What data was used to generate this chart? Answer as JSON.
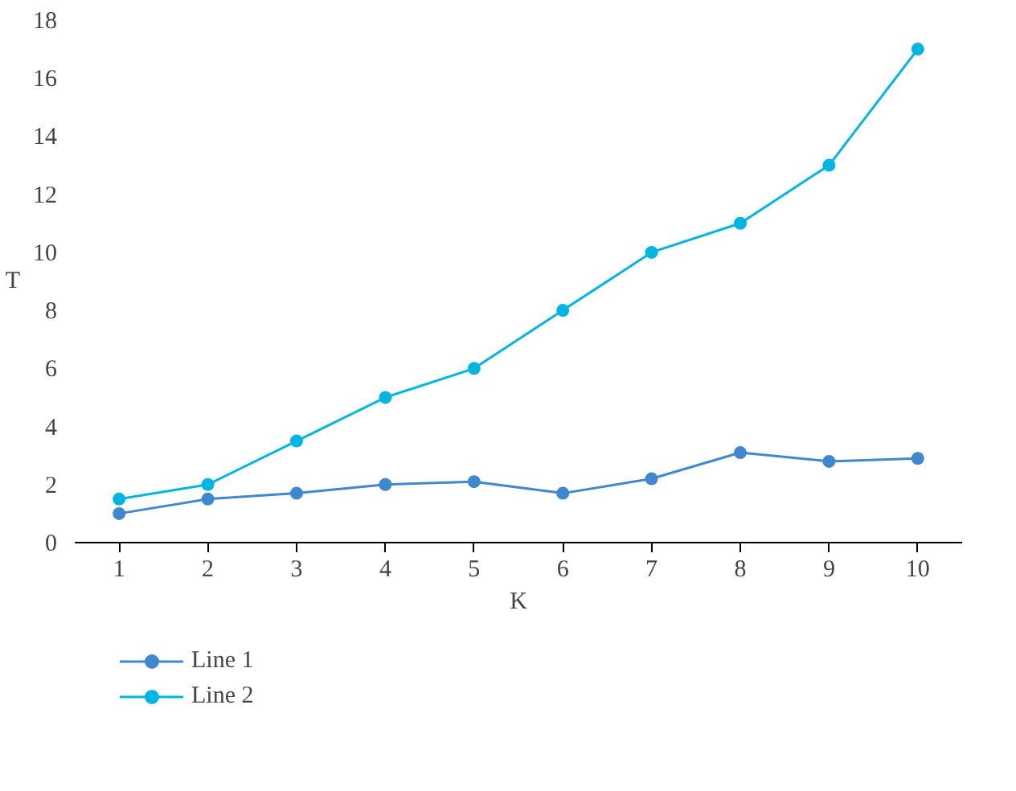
{
  "chart_data": {
    "type": "line",
    "xlabel": "K",
    "ylabel": "T",
    "categories": [
      "1",
      "2",
      "3",
      "4",
      "5",
      "6",
      "7",
      "8",
      "9",
      "10"
    ],
    "series": [
      {
        "name": "Line 1",
        "color": "#3f88cf",
        "values": [
          1.0,
          1.5,
          1.7,
          2.0,
          2.1,
          1.7,
          2.2,
          3.1,
          2.8,
          2.9
        ]
      },
      {
        "name": "Line 2",
        "color": "#00b5e2",
        "values": [
          1.5,
          2.0,
          3.5,
          5.0,
          6.0,
          8.0,
          10.0,
          11.0,
          13.0,
          17.0
        ]
      }
    ],
    "ylim": [
      0,
      18
    ],
    "yticks": [
      0,
      2,
      4,
      6,
      8,
      10,
      12,
      14,
      16,
      18
    ],
    "grid": false,
    "legend": "bottom left",
    "marker": "circle",
    "line_style": "solid"
  }
}
